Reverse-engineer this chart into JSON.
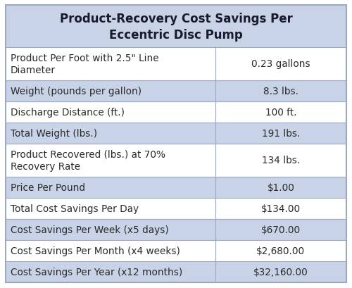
{
  "title": "Product-Recovery Cost Savings Per\nEccentric Disc Pump",
  "title_bg": "#c8d3e8",
  "rows": [
    {
      "label": "Product Per Foot with 2.5\" Line\nDiameter",
      "value": "0.23 gallons",
      "bg": "#ffffff",
      "double": true
    },
    {
      "label": "Weight (pounds per gallon)",
      "value": "8.3 lbs.",
      "bg": "#c8d3e8",
      "double": false
    },
    {
      "label": "Discharge Distance (ft.)",
      "value": "100 ft.",
      "bg": "#ffffff",
      "double": false
    },
    {
      "label": "Total Weight (lbs.)",
      "value": "191 lbs.",
      "bg": "#c8d3e8",
      "double": false
    },
    {
      "label": "Product Recovered (lbs.) at 70%\nRecovery Rate",
      "value": "134 lbs.",
      "bg": "#ffffff",
      "double": true
    },
    {
      "label": "Price Per Pound",
      "value": "$1.00",
      "bg": "#c8d3e8",
      "double": false
    },
    {
      "label": "Total Cost Savings Per Day",
      "value": "$134.00",
      "bg": "#ffffff",
      "double": false
    },
    {
      "label": "Cost Savings Per Week (x5 days)",
      "value": "$670.00",
      "bg": "#c8d3e8",
      "double": false
    },
    {
      "label": "Cost Savings Per Month (x4 weeks)",
      "value": "$2,680.00",
      "bg": "#ffffff",
      "double": false
    },
    {
      "label": "Cost Savings Per Year (x12 months)",
      "value": "$32,160.00",
      "bg": "#c8d3e8",
      "double": false
    }
  ],
  "col_split": 0.615,
  "outer_border_color": "#a0a8c0",
  "line_color": "#a0a8c0",
  "text_color": "#2a2a2a",
  "title_text_color": "#1a1a2e",
  "font_size": 9.8,
  "title_font_size": 12.0,
  "fig_width": 5.0,
  "fig_height": 4.1,
  "dpi": 100
}
